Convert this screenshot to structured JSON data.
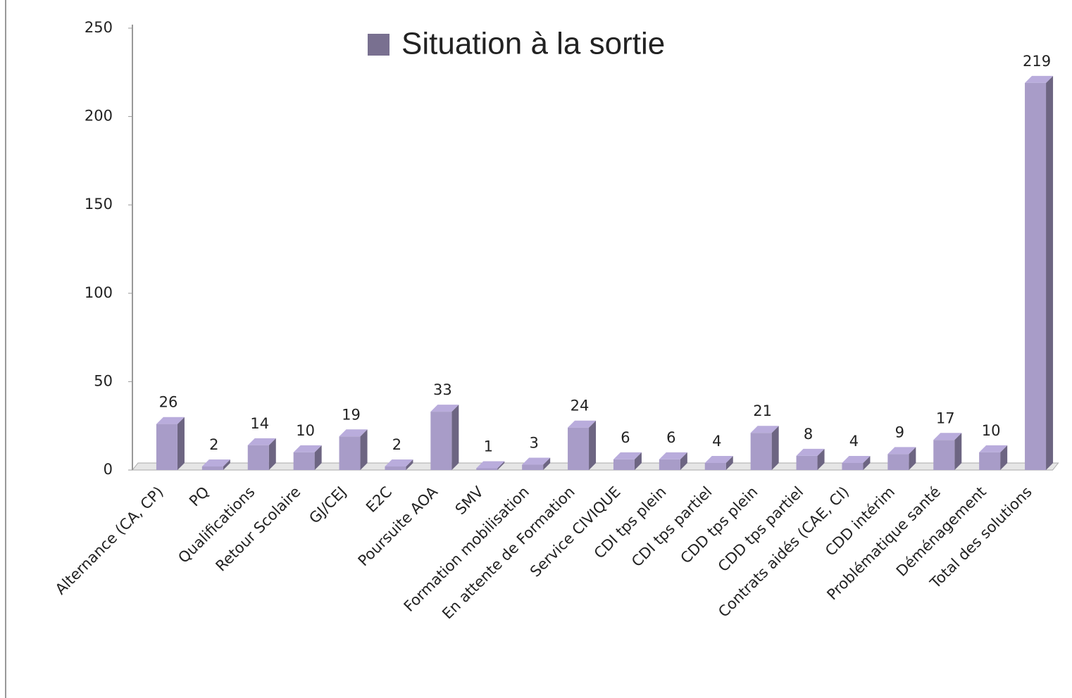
{
  "chart_data": {
    "type": "bar3d",
    "categories": [
      "Alternance (CA, CP)",
      "PQ",
      "Qualifications",
      "Retour Scolaire",
      "GJ/CEJ",
      "E2C",
      "Poursuite AOA",
      "SMV",
      "Formation mobilisation",
      "En attente de Formation",
      "Service CIVIQUE",
      "CDI tps plein",
      "CDI tps partiel",
      "CDD tps plein",
      "CDD tps partiel",
      "Contrats aidés (CAE, CI)",
      "CDD intérim",
      "Problématique santé",
      "Déménagement",
      "Total des solutions"
    ],
    "series": [
      {
        "name": "Situation à la sortie",
        "color": "#a89cc8",
        "values": [
          26,
          2,
          14,
          10,
          19,
          2,
          33,
          1,
          3,
          24,
          6,
          6,
          4,
          21,
          8,
          4,
          9,
          17,
          10,
          219
        ]
      }
    ],
    "ylim": [
      0,
      250
    ],
    "yticks": [
      0,
      50,
      100,
      150,
      200,
      250
    ],
    "legend": "top"
  }
}
